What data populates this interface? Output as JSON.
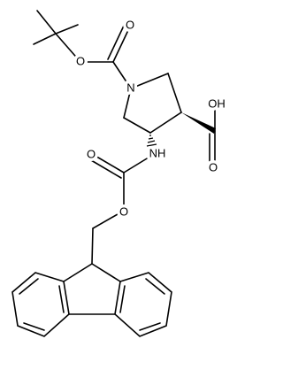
{
  "atoms": [
    {
      "label": "O"
    },
    {
      "label": "O"
    },
    {
      "label": "N"
    },
    {
      "label": "OH"
    },
    {
      "label": "O"
    },
    {
      "label": "NH"
    },
    {
      "label": "O"
    },
    {
      "label": "O"
    }
  ]
}
